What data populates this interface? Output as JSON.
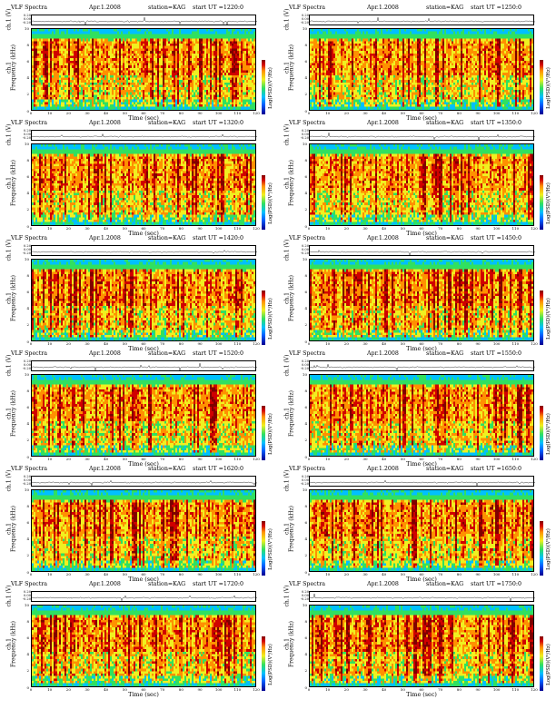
{
  "figure": {
    "panels": [
      {
        "title": "VLF Spectra",
        "date": "Apr.1.2008",
        "station": "station=KAG",
        "start_ut": "start  UT  =1220:0"
      },
      {
        "title": "VLF Spectra",
        "date": "Apr.1.2008",
        "station": "station=KAG",
        "start_ut": "start  UT  =1250:0"
      },
      {
        "title": "VLF Spectra",
        "date": "Apr.1.2008",
        "station": "station=KAG",
        "start_ut": "start  UT  =1320:0"
      },
      {
        "title": "VLF Spectra",
        "date": "Apr.1.2008",
        "station": "station=KAG",
        "start_ut": "start  UT  =1350:0"
      },
      {
        "title": "VLF Spectra",
        "date": "Apr.1.2008",
        "station": "station=KAG",
        "start_ut": "start  UT  =1420:0"
      },
      {
        "title": "VLF Spectra",
        "date": "Apr.1.2008",
        "station": "station=KAG",
        "start_ut": "start  UT  =1450:0"
      },
      {
        "title": "VLF Spectra",
        "date": "Apr.1.2008",
        "station": "station=KAG",
        "start_ut": "start  UT  =1520:0"
      },
      {
        "title": "VLF Spectra",
        "date": "Apr.1.2008",
        "station": "station=KAG",
        "start_ut": "start  UT  =1550:0"
      },
      {
        "title": "VLF Spectra",
        "date": "Apr.1.2008",
        "station": "station=KAG",
        "start_ut": "start  UT  =1620:0"
      },
      {
        "title": "VLF Spectra",
        "date": "Apr.1.2008",
        "station": "station=KAG",
        "start_ut": "start  UT  =1650:0"
      },
      {
        "title": "VLF Spectra",
        "date": "Apr.1.2008",
        "station": "station=KAG",
        "start_ut": "start  UT  =1720:0"
      },
      {
        "title": "VLF Spectra",
        "date": "Apr.1.2008",
        "station": "station=KAG",
        "start_ut": "start  UT  =1750:0"
      }
    ],
    "ch1_ylabel": "ch.1 (V)",
    "spec_ylabel_1": "ch.1",
    "spec_ylabel_2": "Frequency  (kHz)",
    "xlabel": "Time  (sec)",
    "colorbar_label": "Log(PSD)(V²/Hz)"
  },
  "chart_data": {
    "type": "heatmap",
    "panel_count": 12,
    "layout": "6 rows x 2 columns",
    "x_axis": {
      "label": "Time  (sec)",
      "range": [
        0,
        120
      ],
      "ticks": [
        0,
        10,
        20,
        30,
        40,
        50,
        60,
        70,
        80,
        90,
        100,
        110,
        120
      ]
    },
    "y_axis": {
      "label": "Frequency  (kHz)",
      "range": [
        0,
        10
      ],
      "ticks": [
        0,
        2,
        4,
        6,
        8,
        10
      ]
    },
    "ch1_axis": {
      "label": "ch.1 (V)",
      "ticks": [
        "0.20",
        "0.00",
        "-0.20"
      ]
    },
    "colorbar": {
      "label": "Log(PSD)(V²/Hz)",
      "colors": [
        "#000090",
        "#0060ff",
        "#00c0ff",
        "#30e060",
        "#f0f020",
        "#ff9000",
        "#d00000",
        "#800000"
      ]
    },
    "grid": false
  }
}
